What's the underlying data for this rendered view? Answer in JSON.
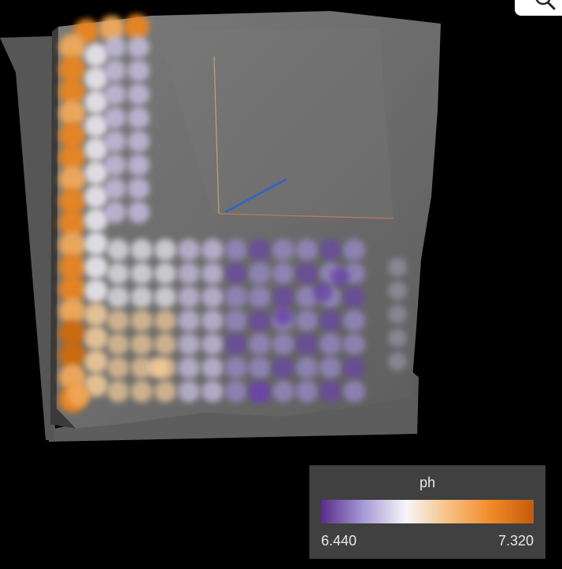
{
  "scene": {
    "colors": {
      "background": "#000000",
      "surface": "#6a6a6a",
      "axis_x": "#c27a52",
      "axis_y": "#b7ab6a",
      "axis_z": "#2f63c9"
    }
  },
  "controls": {
    "corner_button_icon": "magnifier-icon"
  },
  "legend": {
    "title": "ph",
    "min_label": "6.440",
    "max_label": "7.320",
    "gradient": [
      "#5a2c8c",
      "#a79ad6",
      "#f6f6f8",
      "#f7c083",
      "#f08a27",
      "#c45b0c"
    ]
  }
}
